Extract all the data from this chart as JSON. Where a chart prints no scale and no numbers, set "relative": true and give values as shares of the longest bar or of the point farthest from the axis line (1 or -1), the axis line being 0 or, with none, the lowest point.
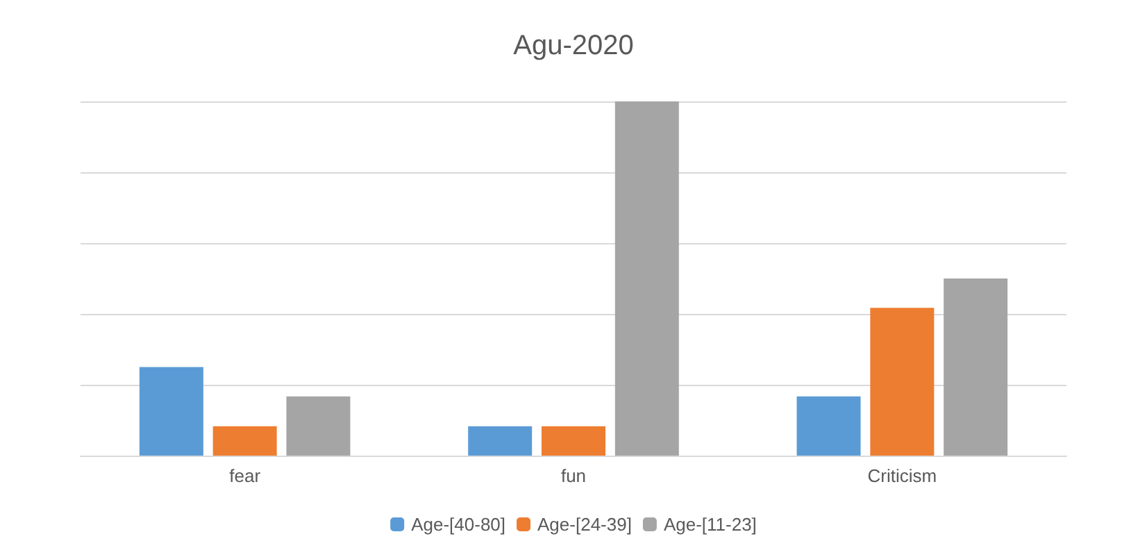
{
  "chart_data": {
    "type": "bar",
    "title": "Agu-2020",
    "relative": true,
    "categories": [
      "fear",
      "fun",
      "Criticism"
    ],
    "series": [
      {
        "name": "Age-[40-80]",
        "color": "#5b9bd5",
        "values": [
          0.25,
          0.083,
          0.167
        ]
      },
      {
        "name": "Age-[24-39]",
        "color": "#ed7d31",
        "values": [
          0.083,
          0.083,
          0.417
        ]
      },
      {
        "name": "Age-[11-23]",
        "color": "#a5a5a5",
        "values": [
          0.167,
          1,
          0.5
        ]
      }
    ],
    "grid": "y",
    "legend": "bottom"
  }
}
